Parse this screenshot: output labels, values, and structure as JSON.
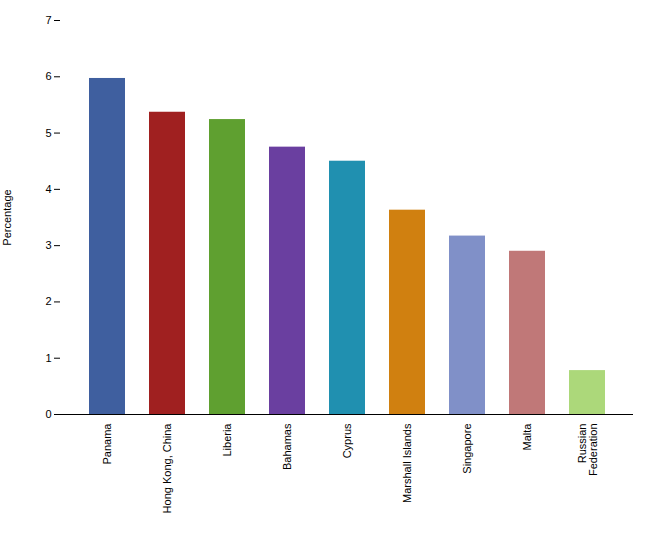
{
  "chart_data": {
    "type": "bar",
    "categories": [
      "Panama",
      "Hong Kong, China",
      "Liberia",
      "Bahamas",
      "Cyprus",
      "Marshall Islands",
      "Singapore",
      "Malta",
      "Russian\nFederation"
    ],
    "values": [
      5.97,
      5.37,
      5.24,
      4.75,
      4.5,
      3.63,
      3.17,
      2.9,
      0.78
    ],
    "colors": [
      "#3f5f9f",
      "#a02020",
      "#5fa030",
      "#6a3fa0",
      "#2090b0",
      "#d08010",
      "#8090c8",
      "#c07878",
      "#acd87a"
    ],
    "ylabel": "Percentage",
    "ylim": [
      0,
      7
    ],
    "yticks": [
      0,
      1,
      2,
      3,
      4,
      5,
      6,
      7
    ],
    "grid": false
  }
}
